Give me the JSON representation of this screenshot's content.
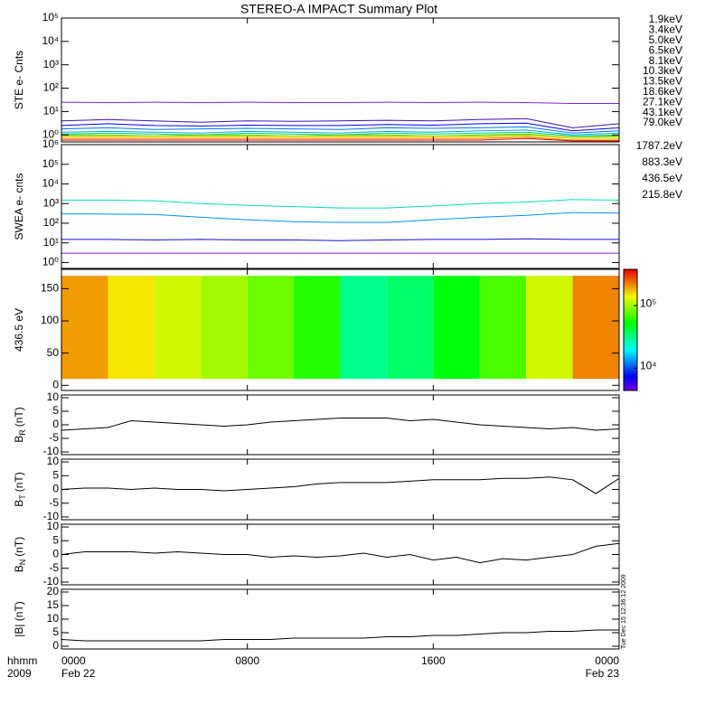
{
  "title": "STEREO-A IMPACT Summary Plot",
  "timestamp": "Tue Dec 15 12:36:12 2009",
  "x_axis": {
    "xlim": [
      0,
      24
    ],
    "xticks": [
      {
        "value": 0,
        "label": "0000"
      },
      {
        "value": 8,
        "label": "0800"
      },
      {
        "value": 16,
        "label": "1600"
      },
      {
        "value": 24,
        "label": "0000"
      }
    ],
    "date_labels": [
      "Feb 22",
      "Feb 23"
    ],
    "axis_label": "hhmm",
    "year": "2009"
  },
  "chart_data": [
    {
      "type": "line",
      "ylabel": "STE e- Cnts",
      "log": true,
      "ylim": [
        0.5,
        100000
      ],
      "yticks": [
        {
          "value": 1,
          "label": "10⁰"
        },
        {
          "value": 10,
          "label": "10¹"
        },
        {
          "value": 100,
          "label": "10²"
        },
        {
          "value": 1000,
          "label": "10³"
        },
        {
          "value": 10000,
          "label": "10⁴"
        },
        {
          "value": 100000,
          "label": "10⁵"
        }
      ],
      "x": [
        0,
        2,
        4,
        6,
        8,
        10,
        12,
        14,
        16,
        18,
        20,
        22,
        24
      ],
      "series": [
        {
          "name": "1.9keV",
          "color": "#8020e0",
          "values": [
            25,
            24,
            25,
            24,
            25,
            24,
            24,
            25,
            24,
            25,
            24,
            22,
            22
          ]
        },
        {
          "name": "3.4keV",
          "color": "#4010b0",
          "values": [
            4,
            4.5,
            4,
            3.5,
            4,
            3.8,
            4,
            4.2,
            4,
            4.5,
            5,
            2,
            3
          ]
        },
        {
          "name": "5.0keV",
          "color": "#0000ff",
          "values": [
            2.5,
            3,
            2.5,
            2.4,
            2.6,
            2.5,
            2.5,
            2.8,
            2.6,
            3,
            3.2,
            1.5,
            2
          ]
        },
        {
          "name": "6.5keV",
          "color": "#0070ff",
          "values": [
            1.8,
            2,
            1.7,
            1.8,
            1.9,
            1.8,
            1.7,
            2,
            1.9,
            2,
            2.2,
            1.2,
            1.5
          ]
        },
        {
          "name": "8.1keV",
          "color": "#00b0e0",
          "values": [
            1.3,
            1.4,
            1.3,
            1.2,
            1.4,
            1.3,
            1.2,
            1.4,
            1.3,
            1.5,
            1.6,
            1,
            1.2
          ]
        },
        {
          "name": "10.3keV",
          "color": "#00d090",
          "values": [
            1.1,
            1.2,
            1.1,
            1,
            1.2,
            1.1,
            1,
            1.2,
            1.1,
            1.2,
            1.3,
            0.9,
            1
          ]
        },
        {
          "name": "13.5keV",
          "color": "#40d000",
          "values": [
            1,
            1,
            0.9,
            1,
            1,
            0.9,
            1,
            1,
            0.9,
            1,
            1.1,
            0.8,
            0.9
          ]
        },
        {
          "name": "18.6keV",
          "color": "#b0e000",
          "values": [
            0.9,
            0.9,
            0.9,
            0.9,
            0.9,
            0.9,
            0.9,
            0.9,
            0.9,
            0.9,
            1,
            0.8,
            0.8
          ]
        },
        {
          "name": "27.1keV",
          "color": "#f0d000",
          "values": [
            0.8,
            0.8,
            0.8,
            0.8,
            0.8,
            0.8,
            0.8,
            0.8,
            0.8,
            0.8,
            0.9,
            0.7,
            0.7
          ]
        },
        {
          "name": "43.1keV",
          "color": "#ff8000",
          "values": [
            0.7,
            0.7,
            0.7,
            0.7,
            0.7,
            0.7,
            0.7,
            0.7,
            0.7,
            0.7,
            0.8,
            0.6,
            0.6
          ]
        },
        {
          "name": "79.0keV",
          "color": "#e00000",
          "values": [
            0.6,
            0.6,
            0.6,
            0.6,
            0.6,
            0.6,
            0.6,
            0.6,
            0.6,
            0.6,
            0.7,
            0.55,
            0.55
          ]
        }
      ]
    },
    {
      "type": "line",
      "ylabel": "SWEA e- cnts",
      "log": true,
      "ylim": [
        0.5,
        1000000
      ],
      "yticks": [
        {
          "value": 1,
          "label": "10⁰"
        },
        {
          "value": 10,
          "label": "10¹"
        },
        {
          "value": 100,
          "label": "10²"
        },
        {
          "value": 1000,
          "label": "10³"
        },
        {
          "value": 10000,
          "label": "10⁴"
        },
        {
          "value": 100000,
          "label": "10⁵"
        },
        {
          "value": 1000000,
          "label": "10⁶"
        }
      ],
      "x": [
        0,
        2,
        4,
        6,
        8,
        10,
        12,
        14,
        16,
        18,
        20,
        22,
        24
      ],
      "series": [
        {
          "name": "1787.2eV",
          "color": "#8020e0",
          "values": [
            3,
            3,
            3,
            3,
            3,
            3,
            3,
            3,
            3,
            3,
            3,
            3,
            3
          ]
        },
        {
          "name": "883.3eV",
          "color": "#1010e0",
          "values": [
            15,
            15,
            14,
            15,
            14,
            14,
            13,
            14,
            15,
            15,
            16,
            15,
            15
          ]
        },
        {
          "name": "436.5eV",
          "color": "#0090ff",
          "values": [
            300,
            290,
            280,
            200,
            150,
            120,
            110,
            110,
            150,
            200,
            250,
            350,
            330
          ]
        },
        {
          "name": "215.8eV",
          "color": "#00e0b0",
          "values": [
            1500,
            1500,
            1400,
            1000,
            800,
            700,
            600,
            600,
            750,
            1000,
            1200,
            1600,
            1500
          ]
        }
      ]
    },
    {
      "type": "heatmap",
      "ylabel": "436.5 eV",
      "ylim": [
        -8,
        180
      ],
      "yticks": [
        0,
        50,
        100,
        150
      ],
      "ybins": [
        10,
        170
      ],
      "xbins": [
        0,
        2,
        4,
        6,
        8,
        10,
        12,
        14,
        16,
        18,
        20,
        22,
        24
      ],
      "values": [
        200000,
        150000,
        120000,
        100000,
        80000,
        60000,
        30000,
        35000,
        50000,
        70000,
        120000,
        220000
      ],
      "clim": [
        4400,
        380000
      ],
      "cticks": [
        {
          "value": 10000,
          "label": "10⁴"
        },
        {
          "value": 100000,
          "label": "10⁵"
        }
      ]
    },
    {
      "type": "line",
      "ylabel": "B",
      "ylabel_sub": "R",
      "ylabel_unit": "(nT)",
      "ylim": [
        -11,
        11
      ],
      "yticks": [
        -10,
        -5,
        0,
        5,
        10
      ],
      "x": [
        0,
        1,
        2,
        3,
        4,
        5,
        6,
        7,
        8,
        9,
        10,
        11,
        12,
        13,
        14,
        15,
        16,
        17,
        18,
        19,
        20,
        21,
        22,
        23,
        24
      ],
      "series": [
        {
          "color": "#000000",
          "values": [
            -2,
            -1.5,
            -1,
            1.5,
            1,
            0.5,
            0,
            -0.5,
            0,
            1,
            1.5,
            2,
            2.5,
            2.5,
            2.5,
            1.5,
            2,
            1,
            0,
            -0.5,
            -1,
            -1.5,
            -1,
            -2,
            -1.5
          ]
        }
      ]
    },
    {
      "type": "line",
      "ylabel": "B",
      "ylabel_sub": "T",
      "ylabel_unit": "(nT)",
      "ylim": [
        -11,
        11
      ],
      "yticks": [
        -10,
        -5,
        0,
        5,
        10
      ],
      "x": [
        0,
        1,
        2,
        3,
        4,
        5,
        6,
        7,
        8,
        9,
        10,
        11,
        12,
        13,
        14,
        15,
        16,
        17,
        18,
        19,
        20,
        21,
        22,
        23,
        24
      ],
      "series": [
        {
          "color": "#000000",
          "values": [
            0,
            0.5,
            0.5,
            0,
            0.5,
            0,
            0,
            -0.5,
            0,
            0.5,
            1,
            2,
            2.5,
            2.5,
            2.5,
            3,
            3.5,
            3.5,
            3.5,
            4,
            4,
            4.5,
            3.5,
            -1.5,
            4
          ]
        }
      ]
    },
    {
      "type": "line",
      "ylabel": "B",
      "ylabel_sub": "N",
      "ylabel_unit": "(nT)",
      "ylim": [
        -11,
        11
      ],
      "yticks": [
        -10,
        -5,
        0,
        5,
        10
      ],
      "x": [
        0,
        1,
        2,
        3,
        4,
        5,
        6,
        7,
        8,
        9,
        10,
        11,
        12,
        13,
        14,
        15,
        16,
        17,
        18,
        19,
        20,
        21,
        22,
        23,
        24
      ],
      "series": [
        {
          "color": "#000000",
          "values": [
            0,
            1,
            1,
            1,
            0.5,
            1,
            0.5,
            0,
            0,
            -1,
            -0.5,
            -1,
            -0.5,
            0.5,
            -1,
            0,
            -2,
            -1,
            -3,
            -1.5,
            -2,
            -1,
            0,
            3,
            4
          ]
        }
      ]
    },
    {
      "type": "line",
      "ylabel": "|B| (nT)",
      "ylim": [
        -1,
        21
      ],
      "yticks": [
        0,
        5,
        10,
        15,
        20
      ],
      "x": [
        0,
        1,
        2,
        3,
        4,
        5,
        6,
        7,
        8,
        9,
        10,
        11,
        12,
        13,
        14,
        15,
        16,
        17,
        18,
        19,
        20,
        21,
        22,
        23,
        24
      ],
      "series": [
        {
          "color": "#000000",
          "values": [
            2.5,
            2,
            2,
            2,
            2,
            2,
            2,
            2.5,
            2.5,
            2.5,
            3,
            3,
            3,
            3,
            3.5,
            3.5,
            4,
            4,
            4.5,
            5,
            5,
            5.5,
            5.5,
            6,
            6
          ]
        }
      ]
    }
  ]
}
